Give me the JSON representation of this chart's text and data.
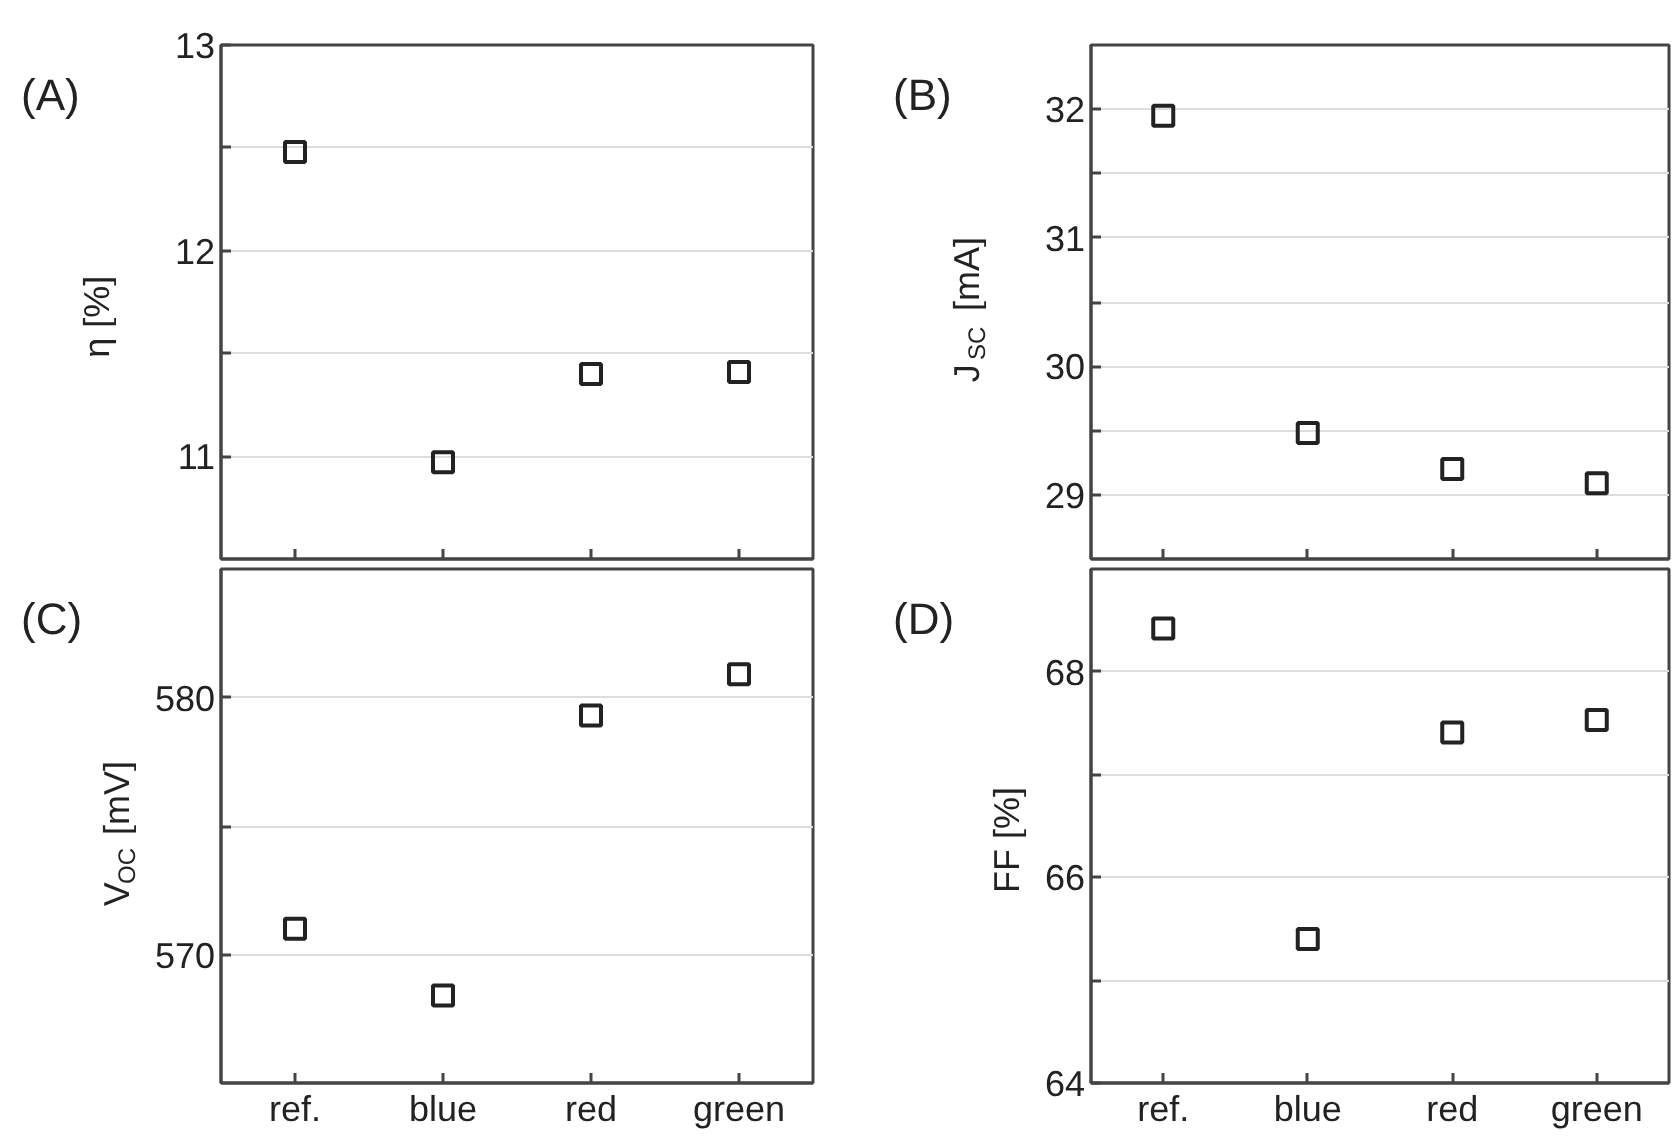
{
  "chart_data": [
    {
      "type": "scatter",
      "title": "(A)",
      "ylabel": "η [%]",
      "categories": [
        null,
        null,
        null,
        null
      ],
      "values": [
        12.48,
        10.97,
        11.4,
        11.41
      ],
      "color": "#222222",
      "marker": "square",
      "ylim": [
        10.5,
        13
      ],
      "yticks": [
        11,
        {
          "value": 11.5,
          "label": null
        },
        12,
        {
          "value": 12.5,
          "label": null
        },
        13
      ],
      "grid": "y",
      "tick_labels": "y"
    },
    {
      "type": "scatter",
      "title": "(B)",
      "ylabel": "J$_{SC}$ [mA]",
      "categories": [
        null,
        null,
        null,
        null
      ],
      "values": [
        31.95,
        29.48,
        29.2,
        29.09
      ],
      "color": "#222222",
      "marker": "square",
      "ylim": [
        28.5,
        32.5
      ],
      "yticks": [
        29,
        {
          "value": 29.5,
          "label": null
        },
        30,
        {
          "value": 30.5,
          "label": null
        },
        31,
        {
          "value": 31.5,
          "label": null
        },
        32
      ],
      "grid": "y",
      "tick_labels": "y"
    },
    {
      "type": "scatter",
      "title": "(C)",
      "ylabel": "V$_{OC}$ [mV]",
      "categories": [
        "ref.",
        "blue",
        "red",
        "green"
      ],
      "values": [
        571.0,
        568.4,
        579.3,
        580.9
      ],
      "color": "#222222",
      "marker": "square",
      "ylim": [
        565,
        585
      ],
      "yticks": [
        570,
        {
          "value": 575,
          "label": null
        },
        580
      ],
      "grid": "y"
    },
    {
      "type": "scatter",
      "title": "(D)",
      "ylabel": "FF [%]",
      "categories": [
        "ref.",
        "blue",
        "red",
        "green"
      ],
      "values": [
        68.42,
        65.4,
        67.41,
        67.53
      ],
      "color": "#222222",
      "marker": "square",
      "ylim": [
        64,
        69
      ],
      "yticks": [
        64,
        {
          "value": 65,
          "label": null
        },
        66,
        {
          "value": 67,
          "label": null
        },
        68
      ],
      "grid": "y"
    }
  ]
}
